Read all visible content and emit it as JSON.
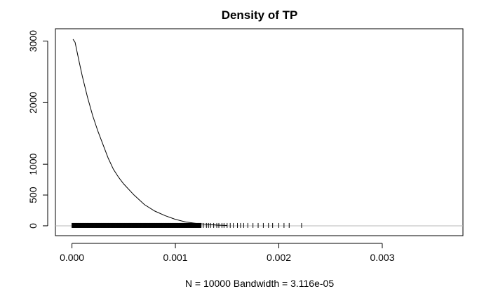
{
  "chart_data": {
    "type": "line",
    "title": "Density of TP",
    "xlabel": "N = 10000   Bandwidth = 3.116e-05",
    "ylabel": "",
    "xlim": [
      -0.00016,
      0.00378
    ],
    "ylim": [
      -160,
      3200
    ],
    "x_ticks": [
      0.0,
      0.001,
      0.002,
      0.003
    ],
    "x_tick_labels": [
      "0.000",
      "0.001",
      "0.002",
      "0.003"
    ],
    "y_ticks": [
      0,
      500,
      1000,
      2000,
      3000
    ],
    "y_tick_labels": [
      "0",
      "500",
      "1000",
      "2000",
      "3000"
    ],
    "grid": false,
    "legend": "none",
    "baseline_y": 0,
    "series": [
      {
        "x": [
          1e-05,
          3e-05,
          5e-05,
          7e-05,
          0.0001,
          0.00015,
          0.0002,
          0.00025,
          0.0003,
          0.00035,
          0.0004,
          0.00045,
          0.0005,
          0.0006,
          0.0007,
          0.0008,
          0.0009,
          0.001,
          0.0011,
          0.0012,
          0.0013,
          0.0014,
          0.0015
        ],
        "y": [
          3030,
          2980,
          2820,
          2660,
          2430,
          2090,
          1790,
          1540,
          1320,
          1100,
          920,
          790,
          680,
          500,
          345,
          240,
          165,
          105,
          62,
          40,
          25,
          12,
          5
        ]
      }
    ],
    "rug_dense_range": [
      0.0,
      0.00125
    ],
    "rug_sparse_x": [
      0.00127,
      0.0013,
      0.00132,
      0.00134,
      0.00137,
      0.0014,
      0.00142,
      0.00145,
      0.00147,
      0.0015,
      0.00153,
      0.00156,
      0.0016,
      0.00163,
      0.00166,
      0.0017,
      0.00175,
      0.0018,
      0.00185,
      0.0019,
      0.00194,
      0.002,
      0.00205,
      0.0021,
      0.00222
    ]
  }
}
